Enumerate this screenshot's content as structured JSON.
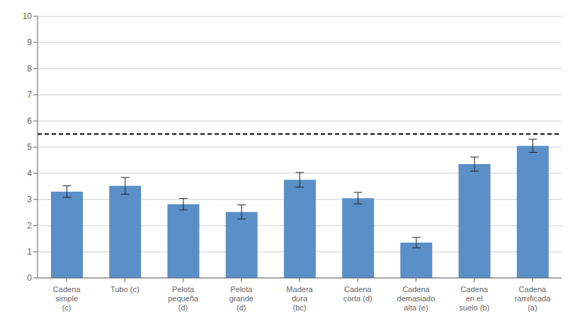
{
  "chart_data": {
    "type": "bar",
    "categories": [
      "Cadena\nsimple\n(c)",
      "Tubo (c)",
      "Pelota\npequeña\n(d)",
      "Pelota\ngrande\n(d)",
      "Madera\ndura\n(bc)",
      "Cadena\ncorta (d)",
      "Cadena\ndemasiado\nalta (e)",
      "Cadena\nen el\nsuelo (b)",
      "Cadena\nramificada\n(a)"
    ],
    "values": [
      3.3,
      3.52,
      2.82,
      2.52,
      3.75,
      3.05,
      1.35,
      4.35,
      5.05
    ],
    "errors": [
      0.22,
      0.32,
      0.22,
      0.27,
      0.28,
      0.22,
      0.2,
      0.27,
      0.25
    ],
    "color": "#5b8fc7",
    "hline": 5.5,
    "ylim": [
      0,
      10
    ],
    "yticks": [
      0,
      1,
      2,
      3,
      4,
      5,
      6,
      7,
      8,
      9,
      10
    ],
    "grid": true
  }
}
